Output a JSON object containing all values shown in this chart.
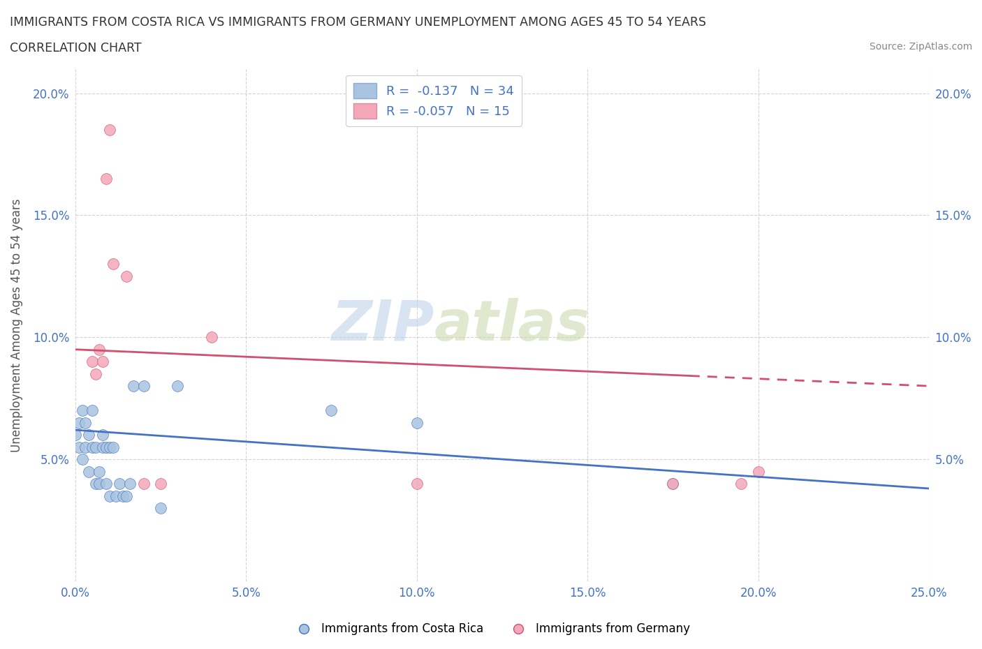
{
  "title_line1": "IMMIGRANTS FROM COSTA RICA VS IMMIGRANTS FROM GERMANY UNEMPLOYMENT AMONG AGES 45 TO 54 YEARS",
  "title_line2": "CORRELATION CHART",
  "source_text": "Source: ZipAtlas.com",
  "ylabel": "Unemployment Among Ages 45 to 54 years",
  "xlim": [
    0.0,
    0.25
  ],
  "ylim": [
    0.0,
    0.21
  ],
  "xticks": [
    0.0,
    0.05,
    0.1,
    0.15,
    0.2,
    0.25
  ],
  "yticks": [
    0.05,
    0.1,
    0.15,
    0.2
  ],
  "xticklabels": [
    "0.0%",
    "5.0%",
    "10.0%",
    "15.0%",
    "20.0%",
    "25.0%"
  ],
  "yticklabels": [
    "5.0%",
    "10.0%",
    "15.0%",
    "20.0%"
  ],
  "watermark_zip": "ZIP",
  "watermark_atlas": "atlas",
  "color_blue": "#a8c4e0",
  "color_pink": "#f4a7b9",
  "line_blue": "#4472c4",
  "line_pink": "#d05070",
  "costa_rica_x": [
    0.0,
    0.001,
    0.001,
    0.002,
    0.002,
    0.003,
    0.003,
    0.004,
    0.004,
    0.005,
    0.005,
    0.006,
    0.006,
    0.007,
    0.007,
    0.008,
    0.008,
    0.009,
    0.009,
    0.01,
    0.01,
    0.011,
    0.012,
    0.013,
    0.014,
    0.015,
    0.016,
    0.017,
    0.02,
    0.025,
    0.03,
    0.075,
    0.1,
    0.175
  ],
  "costa_rica_y": [
    0.06,
    0.055,
    0.065,
    0.05,
    0.07,
    0.055,
    0.065,
    0.045,
    0.06,
    0.055,
    0.07,
    0.04,
    0.055,
    0.04,
    0.045,
    0.055,
    0.06,
    0.055,
    0.04,
    0.055,
    0.035,
    0.055,
    0.035,
    0.04,
    0.035,
    0.035,
    0.04,
    0.08,
    0.08,
    0.03,
    0.08,
    0.07,
    0.065,
    0.04
  ],
  "germany_x": [
    0.005,
    0.006,
    0.007,
    0.008,
    0.009,
    0.01,
    0.011,
    0.015,
    0.02,
    0.025,
    0.04,
    0.1,
    0.175,
    0.195,
    0.2
  ],
  "germany_y": [
    0.09,
    0.085,
    0.095,
    0.09,
    0.165,
    0.185,
    0.13,
    0.125,
    0.04,
    0.04,
    0.1,
    0.04,
    0.04,
    0.04,
    0.045
  ],
  "trend_blue_x0": 0.0,
  "trend_blue_y0": 0.062,
  "trend_blue_x1": 0.25,
  "trend_blue_y1": 0.038,
  "trend_pink_x0": 0.0,
  "trend_pink_y0": 0.095,
  "trend_pink_x1": 0.25,
  "trend_pink_y1": 0.08,
  "trend_pink_solid_end": 0.18,
  "background_color": "#ffffff",
  "grid_color": "#c8c8c8"
}
